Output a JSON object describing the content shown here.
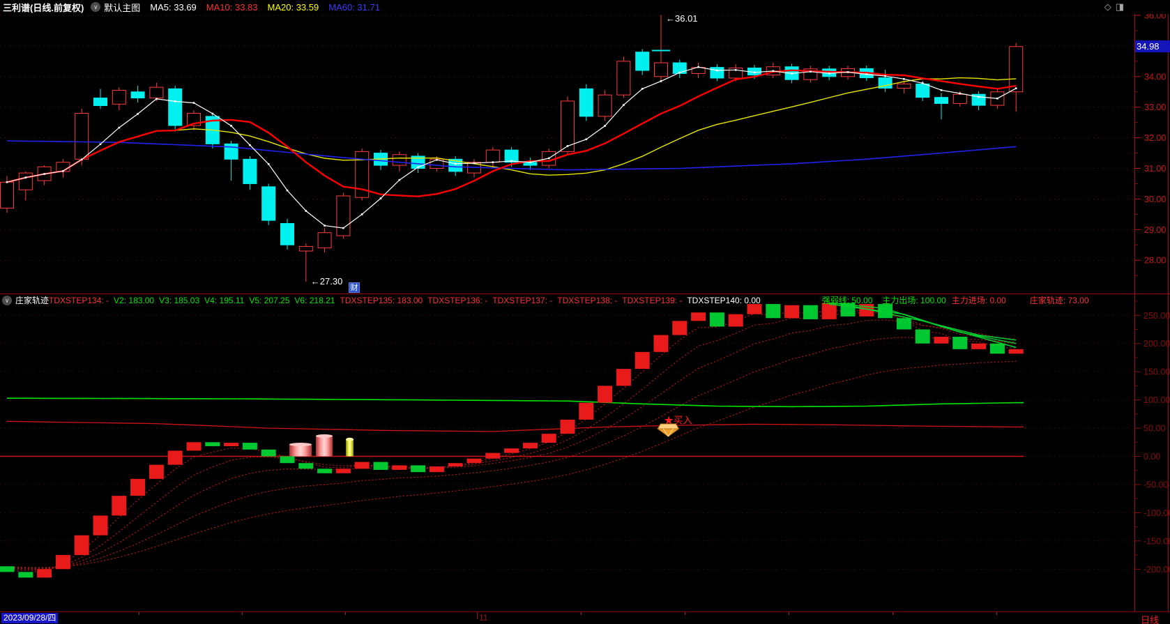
{
  "app": {
    "title_bar": {
      "symbol": "三利谱(日线.前复权)",
      "overlay_selector": "默认主图",
      "collapse_icon": "∨",
      "ma_items": [
        {
          "label": "MA5: 33.69",
          "color": "#ffffff"
        },
        {
          "label": "MA10: 33.83",
          "color": "#ff3030"
        },
        {
          "label": "MA20: 33.59",
          "color": "#ffff00"
        },
        {
          "label": "MA60: 31.71",
          "color": "#3b3bff"
        }
      ],
      "window_icons": [
        {
          "name": "diamond-tool-icon",
          "glyph": "◇"
        },
        {
          "name": "layout-split-icon",
          "glyph": "◨"
        }
      ]
    },
    "status_bar": {
      "date": "2023/09/28/四",
      "month_label": "11",
      "month_tick_x": 684,
      "period": "日线",
      "tick_positions": [
        199,
        347,
        495,
        833,
        982,
        1131,
        1280,
        1429
      ]
    }
  },
  "indicator_header": {
    "name": "庄家轨迹",
    "collapse_icon": "∨",
    "fields": [
      {
        "label": "TDXSTEP134: -",
        "color": "#ff3030",
        "ml": 0
      },
      {
        "label": "V2: 183.00",
        "color": "#00e600",
        "ml": 7
      },
      {
        "label": "V3: 185.03",
        "color": "#00e600",
        "ml": 7
      },
      {
        "label": "V4: 195.11",
        "color": "#00e600",
        "ml": 7
      },
      {
        "label": "V5: 207.25",
        "color": "#00e600",
        "ml": 7
      },
      {
        "label": "V6: 218.21",
        "color": "#00e600",
        "ml": 7
      },
      {
        "label": "TDXSTEP135: 183.00",
        "color": "#ff3030",
        "ml": 7
      },
      {
        "label": "TDXSTEP136: -",
        "color": "#ff3030",
        "ml": 7
      },
      {
        "label": "TDXSTEP137: -",
        "color": "#ff3030",
        "ml": 7
      },
      {
        "label": "TDXSTEP138: -",
        "color": "#ff3030",
        "ml": 7
      },
      {
        "label": "TDXSTEP139: -",
        "color": "#ff3030",
        "ml": 7
      },
      {
        "label": "TDXSTEP140: 0.00",
        "color": "#ffffff",
        "ml": 7
      },
      {
        "label": "强弱线: 50.00",
        "color": "#00e600",
        "ml": 88
      },
      {
        "label": "主力出场: 100.00",
        "color": "#00e600",
        "ml": 14
      },
      {
        "label": "主力进场: 0.00",
        "color": "#ff3030",
        "ml": 8
      },
      {
        "label": "庄家轨迹: 73.00",
        "color": "#ff3030",
        "ml": 34
      }
    ]
  },
  "chart_data": [
    {
      "type": "candlestick",
      "title": "三利谱 日线 前复权 主图",
      "ylim": [
        27.3,
        36.35
      ],
      "y_ticks": [
        36,
        35,
        34,
        33,
        32,
        31,
        30,
        29,
        28
      ],
      "last_price": "34.98",
      "annotations": [
        {
          "index": 35,
          "price": 36.01,
          "text": "←36.01"
        },
        {
          "index": 16,
          "price": 27.3,
          "text": "←27.30"
        }
      ],
      "cross_mark": {
        "index": 35,
        "price": 34.85
      },
      "cai_badge": {
        "text": "财",
        "x": 500,
        "y": 405
      },
      "ma60_points": [
        [
          0,
          31.9
        ],
        [
          6,
          31.85
        ],
        [
          12,
          31.7
        ],
        [
          18,
          31.35
        ],
        [
          24,
          31.05
        ],
        [
          30,
          30.95
        ],
        [
          36,
          31.0
        ],
        [
          42,
          31.15
        ],
        [
          46,
          31.3
        ],
        [
          50,
          31.5
        ],
        [
          54,
          31.71
        ]
      ],
      "candles": [
        [
          29.7,
          30.75,
          29.55,
          30.55
        ],
        [
          30.3,
          30.9,
          29.95,
          30.85
        ],
        [
          30.6,
          31.1,
          30.45,
          31.05
        ],
        [
          30.9,
          31.3,
          30.7,
          31.2
        ],
        [
          31.3,
          32.95,
          31.1,
          32.8
        ],
        [
          33.3,
          33.6,
          32.95,
          33.05
        ],
        [
          33.1,
          33.65,
          32.9,
          33.55
        ],
        [
          33.5,
          33.7,
          33.15,
          33.3
        ],
        [
          33.3,
          33.8,
          33.2,
          33.65
        ],
        [
          33.6,
          33.7,
          32.2,
          32.4
        ],
        [
          32.4,
          32.9,
          32.25,
          32.8
        ],
        [
          32.7,
          32.8,
          31.65,
          31.8
        ],
        [
          31.8,
          31.9,
          30.6,
          31.3
        ],
        [
          31.3,
          31.4,
          30.3,
          30.5
        ],
        [
          30.4,
          30.5,
          29.15,
          29.3
        ],
        [
          29.2,
          29.35,
          28.35,
          28.5
        ],
        [
          28.3,
          28.55,
          27.3,
          28.45
        ],
        [
          28.4,
          29.05,
          28.25,
          28.9
        ],
        [
          28.8,
          30.2,
          28.7,
          30.1
        ],
        [
          30.05,
          31.65,
          29.95,
          31.55
        ],
        [
          31.5,
          31.6,
          30.95,
          31.1
        ],
        [
          31.1,
          31.55,
          30.9,
          31.45
        ],
        [
          31.4,
          31.5,
          30.85,
          31.0
        ],
        [
          31.0,
          31.4,
          30.9,
          31.3
        ],
        [
          31.3,
          31.4,
          30.75,
          30.9
        ],
        [
          30.85,
          31.3,
          30.7,
          31.2
        ],
        [
          31.2,
          31.7,
          31.05,
          31.6
        ],
        [
          31.6,
          31.7,
          31.05,
          31.2
        ],
        [
          31.2,
          31.35,
          30.95,
          31.1
        ],
        [
          31.1,
          31.65,
          31.0,
          31.55
        ],
        [
          31.55,
          33.35,
          31.45,
          33.2
        ],
        [
          33.6,
          33.75,
          32.55,
          32.7
        ],
        [
          32.7,
          33.55,
          32.55,
          33.4
        ],
        [
          33.4,
          34.65,
          33.3,
          34.5
        ],
        [
          34.8,
          34.9,
          34.05,
          34.2
        ],
        [
          34.0,
          36.01,
          33.85,
          34.45
        ],
        [
          34.45,
          34.55,
          33.95,
          34.1
        ],
        [
          34.1,
          34.45,
          33.95,
          34.3
        ],
        [
          34.3,
          34.4,
          33.85,
          33.95
        ],
        [
          33.95,
          34.4,
          33.85,
          34.28
        ],
        [
          34.28,
          34.38,
          33.92,
          34.05
        ],
        [
          34.05,
          34.45,
          33.95,
          34.32
        ],
        [
          34.32,
          34.42,
          33.78,
          33.9
        ],
        [
          33.9,
          34.35,
          33.8,
          34.25
        ],
        [
          34.25,
          34.35,
          33.88,
          34.0
        ],
        [
          34.0,
          34.35,
          33.9,
          34.26
        ],
        [
          34.26,
          34.36,
          33.86,
          33.96
        ],
        [
          33.96,
          34.22,
          33.5,
          33.62
        ],
        [
          33.62,
          33.86,
          33.45,
          33.76
        ],
        [
          33.76,
          33.86,
          33.2,
          33.32
        ],
        [
          33.32,
          33.46,
          32.6,
          33.12
        ],
        [
          33.12,
          33.52,
          33.02,
          33.42
        ],
        [
          33.42,
          33.52,
          32.9,
          33.06
        ],
        [
          33.06,
          33.6,
          32.95,
          33.5
        ],
        [
          33.5,
          35.1,
          32.85,
          34.98
        ]
      ]
    },
    {
      "type": "step-bar",
      "name": "庄家轨迹",
      "ylim": [
        -230,
        288
      ],
      "y_ticks": [
        250,
        200,
        150,
        100,
        50,
        0,
        -50,
        -100,
        -150,
        -200
      ],
      "start_value": -195,
      "values": [
        -205,
        -215,
        -200,
        -175,
        -140,
        -105,
        -70,
        -40,
        -15,
        10,
        25,
        18,
        24,
        12,
        0,
        -12,
        -22,
        -30,
        -22,
        -10,
        -24,
        -16,
        -28,
        -18,
        -12,
        -4,
        6,
        14,
        24,
        40,
        65,
        95,
        125,
        155,
        185,
        215,
        240,
        255,
        230,
        252,
        270,
        245,
        268,
        243,
        272,
        248,
        270,
        245,
        225,
        200,
        212,
        190,
        200,
        182,
        190
      ],
      "green_line": [
        [
          0,
          103
        ],
        [
          12,
          102
        ],
        [
          22,
          100
        ],
        [
          30,
          98
        ],
        [
          34,
          93
        ],
        [
          38,
          89
        ],
        [
          42,
          88
        ],
        [
          46,
          89
        ],
        [
          50,
          93
        ],
        [
          54,
          95
        ]
      ],
      "red_line": [
        [
          0,
          62
        ],
        [
          8,
          58
        ],
        [
          14,
          50
        ],
        [
          20,
          46
        ],
        [
          26,
          44
        ],
        [
          32,
          52
        ],
        [
          36,
          55
        ],
        [
          40,
          57
        ],
        [
          44,
          56
        ],
        [
          48,
          54
        ],
        [
          54,
          52
        ]
      ],
      "zero_line": 0,
      "envelope_alphas": [
        0.45,
        0.28,
        0.18,
        0.11,
        0.065
      ],
      "green_fan": [
        [
          [
            44,
            272
          ],
          [
            47,
            262
          ],
          [
            50,
            230
          ],
          [
            54,
            193
          ]
        ],
        [
          [
            44,
            270
          ],
          [
            48,
            252
          ],
          [
            51,
            220
          ],
          [
            54,
            200
          ]
        ],
        [
          [
            45,
            268
          ],
          [
            49,
            240
          ],
          [
            52,
            215
          ],
          [
            54,
            206
          ]
        ]
      ],
      "cylinders": [
        {
          "x": 415,
          "w": 32,
          "value": 21,
          "color": "pink"
        },
        {
          "x": 453,
          "w": 24,
          "value": 36,
          "color": "pink"
        },
        {
          "x": 496,
          "w": 11,
          "value": 30,
          "color": "yellow"
        }
      ],
      "buy_marker": {
        "index": 35.5,
        "text": "★买入",
        "text_value": 62,
        "gem_value": 50
      }
    }
  ]
}
